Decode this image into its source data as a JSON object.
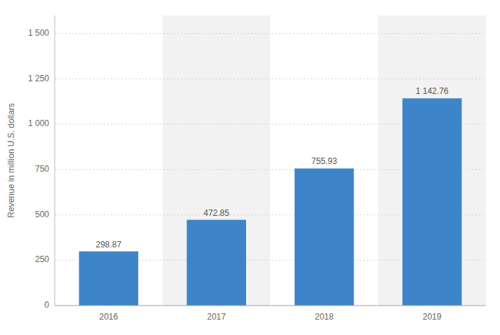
{
  "chart_data": {
    "type": "bar",
    "ylabel": "Revenue in million U.S. dollars",
    "categories": [
      "2016",
      "2017",
      "2018",
      "2019"
    ],
    "values": [
      298.87,
      472.85,
      755.93,
      1142.76
    ],
    "value_labels": [
      "298.87",
      "472.85",
      "755.93",
      "1 142.76"
    ],
    "data_labels": true,
    "color": "#3d85c8",
    "ylim": [
      0,
      1600
    ],
    "yticks": [
      0,
      250,
      500,
      750,
      {
        "value": 1000,
        "label": "1 000"
      },
      {
        "value": 1250,
        "label": "1 250"
      },
      {
        "value": 1500,
        "label": "1 500"
      }
    ],
    "grid": true
  }
}
